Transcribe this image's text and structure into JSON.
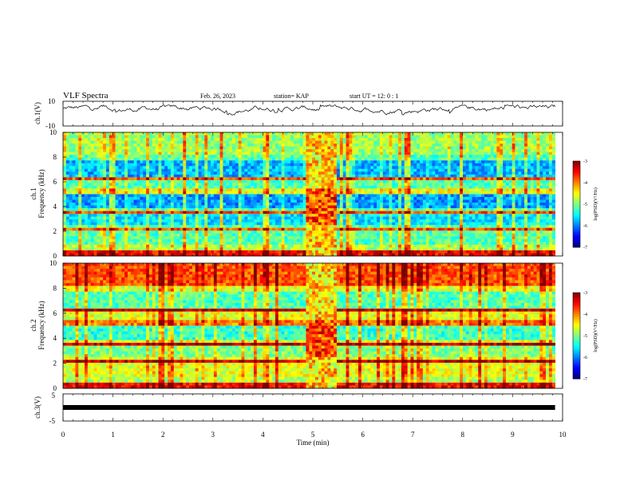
{
  "header": {
    "title": "VLF Spectra",
    "date": "Feb. 26, 2023",
    "station": "station= KAP",
    "start": "start  UT =   12: 0  : 1"
  },
  "chart_data": [
    {
      "type": "line",
      "name": "ch1-waveform",
      "ylabel": "ch.1(V)",
      "ylim": [
        -10,
        10
      ],
      "yticks": [
        "10",
        "-10"
      ],
      "x_range_min": [
        0,
        9.85
      ],
      "y_mean": 4,
      "y_amplitude_range": [
        -1,
        7
      ]
    },
    {
      "type": "heatmap",
      "name": "ch1-spectrogram",
      "ylabel": "ch.1 Frequency (kHz)",
      "ylabel_lines": [
        "ch.1",
        "Frequency (kHz)"
      ],
      "xlim": [
        0,
        10
      ],
      "ylim": [
        0,
        10
      ],
      "yticks": [
        "0",
        "2",
        "4",
        "6",
        "8",
        "10"
      ],
      "data_x_range": [
        0,
        9.85
      ],
      "burst_interval_min": [
        4.85,
        5.45
      ],
      "colorbar": {
        "label": "log(PSD)(V²/Hz)",
        "ticks": [
          "-3",
          "-4",
          "-5",
          "-6",
          "-7"
        ],
        "range": [
          -7,
          -3
        ]
      }
    },
    {
      "type": "heatmap",
      "name": "ch2-spectrogram",
      "ylabel": "ch.2 Frequency (kHz)",
      "ylabel_lines": [
        "ch.2",
        "Frequency (kHz)"
      ],
      "xlim": [
        0,
        10
      ],
      "ylim": [
        0,
        10
      ],
      "yticks": [
        "0",
        "2",
        "4",
        "6",
        "8",
        "10"
      ],
      "data_x_range": [
        0,
        9.85
      ],
      "burst_interval_min": [
        4.85,
        5.45
      ],
      "colorbar": {
        "label": "log(PSD)(V²/Hz)",
        "ticks": [
          "-3",
          "-4",
          "-5",
          "-6",
          "-7"
        ],
        "range": [
          -7,
          -3
        ]
      }
    },
    {
      "type": "line",
      "name": "ch3-waveform",
      "ylabel": "ch.3(V)",
      "ylim": [
        -5,
        5
      ],
      "yticks": [
        "5",
        "-5"
      ],
      "x_range_min": [
        0,
        9.85
      ],
      "y_level": 0
    }
  ],
  "xaxis": {
    "label": "Time  (min)",
    "ticks": [
      "0",
      "1",
      "2",
      "3",
      "4",
      "5",
      "6",
      "7",
      "8",
      "9",
      "10"
    ],
    "range": [
      0,
      10
    ]
  }
}
